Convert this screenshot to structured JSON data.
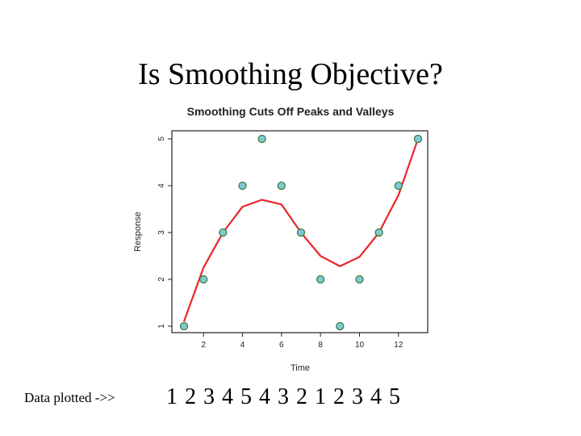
{
  "slide": {
    "title": "Is Smoothing Objective?",
    "footer_label": "Data plotted ->>",
    "footer_sequence": "1 2 3 4 5 4 3 2 1 2 3 4 5"
  },
  "colors": {
    "smooth_line": "#e8262b",
    "point_fill": "#7fc9d6",
    "point_stroke": "#3a7d3a",
    "frame": "#222222"
  },
  "chart_data": {
    "type": "scatter",
    "title": "Smoothing Cuts Off Peaks and Valleys",
    "xlabel": "Time",
    "ylabel": "Response",
    "xlim": [
      1,
      13
    ],
    "ylim": [
      1,
      5
    ],
    "xticks": [
      2,
      4,
      6,
      8,
      10,
      12
    ],
    "yticks": [
      1,
      2,
      3,
      4,
      5
    ],
    "grid": false,
    "series": [
      {
        "kind": "points",
        "x": [
          1,
          2,
          3,
          4,
          5,
          6,
          7,
          8,
          9,
          10,
          11,
          12,
          13
        ],
        "y": [
          1,
          2,
          3,
          4,
          5,
          4,
          3,
          2,
          1,
          2,
          3,
          4,
          5
        ]
      },
      {
        "kind": "smooth-line",
        "x": [
          1,
          2,
          3,
          4,
          5,
          6,
          7,
          8,
          9,
          10,
          11,
          12,
          13
        ],
        "y": [
          1.1,
          2.25,
          3.0,
          3.55,
          3.7,
          3.6,
          3.0,
          2.5,
          2.28,
          2.48,
          3.0,
          3.8,
          5.0
        ]
      }
    ]
  }
}
